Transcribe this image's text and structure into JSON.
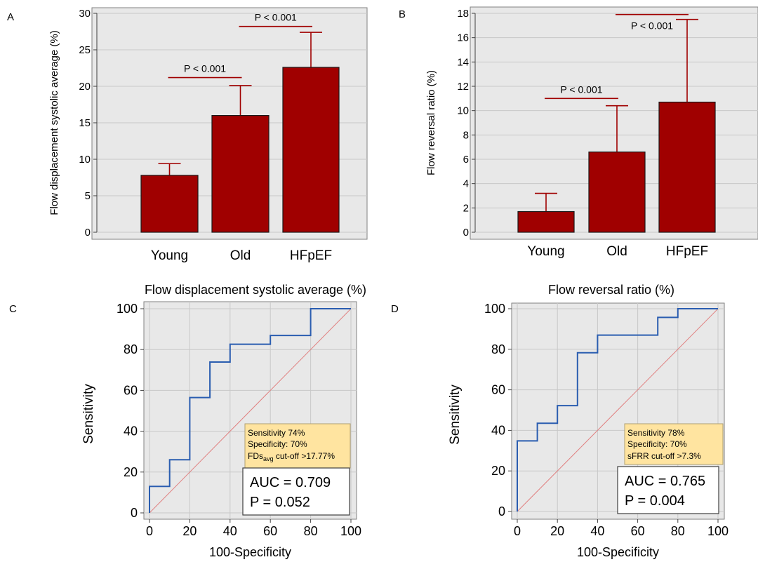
{
  "chart_data": [
    {
      "panel": "A",
      "type": "bar",
      "title": "",
      "xlabel": "",
      "ylabel": "Flow displacement systolic average (%)",
      "categories": [
        "Young",
        "Old",
        "HFpEF"
      ],
      "values": [
        7.8,
        16.0,
        22.6
      ],
      "error_upper": [
        9.4,
        20.1,
        27.4
      ],
      "ylim": [
        0,
        30
      ],
      "yticks": [
        0,
        5,
        10,
        15,
        20,
        25,
        30
      ],
      "grid": true,
      "significance": [
        {
          "from": "Young",
          "to": "Old",
          "label": "P < 0.001",
          "y": 21.2
        },
        {
          "from": "Old",
          "to": "HFpEF",
          "label": "P < 0.001",
          "y": 28.2
        }
      ],
      "colors": {
        "bar": "#a00000",
        "error": "#a00000"
      }
    },
    {
      "panel": "B",
      "type": "bar",
      "title": "",
      "xlabel": "",
      "ylabel": "Flow reversal ratio (%)",
      "categories": [
        "Young",
        "Old",
        "HFpEF"
      ],
      "values": [
        1.7,
        6.6,
        10.7
      ],
      "error_upper": [
        3.2,
        10.4,
        17.5
      ],
      "ylim": [
        0,
        18
      ],
      "yticks": [
        0,
        2,
        4,
        6,
        8,
        10,
        12,
        14,
        16,
        18
      ],
      "grid": true,
      "significance": [
        {
          "from": "Young",
          "to": "Old",
          "label": "P < 0.001",
          "y": 11.0
        },
        {
          "from": "Old",
          "to": "HFpEF",
          "label": "P < 0.001",
          "y": 17.9
        }
      ],
      "colors": {
        "bar": "#a00000",
        "error": "#a00000"
      }
    },
    {
      "panel": "C",
      "type": "line",
      "title": "Flow displacement systolic average (%)",
      "xlabel": "100-Specificity",
      "ylabel": "Sensitivity",
      "xlim": [
        0,
        100
      ],
      "ylim": [
        0,
        100
      ],
      "xticks": [
        0,
        20,
        40,
        60,
        80,
        100
      ],
      "yticks": [
        0,
        20,
        40,
        60,
        80,
        100
      ],
      "grid": true,
      "roc_x": [
        0,
        0,
        10,
        10,
        20,
        20,
        30,
        30,
        40,
        40,
        60,
        60,
        80,
        80,
        100
      ],
      "roc_y": [
        0,
        13,
        13,
        26,
        26,
        56.5,
        56.5,
        73.9,
        73.9,
        82.6,
        82.6,
        86.9,
        86.9,
        100,
        100
      ],
      "reference_line": [
        [
          0,
          0
        ],
        [
          100,
          100
        ]
      ],
      "annotation": {
        "sensitivity": "Sensitivity 74%",
        "specificity": "Specificity: 70%",
        "cutoff_main": "FDs",
        "cutoff_sub": "avg",
        "cutoff_rest": " cut-off >17.77%"
      },
      "auc": "AUC = 0.709",
      "p": "P = 0.052",
      "colors": {
        "roc": "#2a5db0",
        "diagonal": "#e08080",
        "annotation_bg": "#ffe4a0"
      }
    },
    {
      "panel": "D",
      "type": "line",
      "title": "Flow reversal ratio (%)",
      "xlabel": "100-Specificity",
      "ylabel": "Sensitivity",
      "xlim": [
        0,
        100
      ],
      "ylim": [
        0,
        100
      ],
      "xticks": [
        0,
        20,
        40,
        60,
        80,
        100
      ],
      "yticks": [
        0,
        20,
        40,
        60,
        80,
        100
      ],
      "grid": true,
      "roc_x": [
        0,
        0,
        10,
        10,
        20,
        20,
        30,
        30,
        40,
        40,
        70,
        70,
        80,
        80,
        100
      ],
      "roc_y": [
        0,
        34.8,
        34.8,
        43.5,
        43.5,
        52.2,
        52.2,
        78.3,
        78.3,
        87,
        87,
        95.7,
        95.7,
        100,
        100
      ],
      "reference_line": [
        [
          0,
          0
        ],
        [
          100,
          100
        ]
      ],
      "annotation": {
        "sensitivity": "Sensitivity 78%",
        "specificity": "Specificity: 70%",
        "cutoff_main": "sFRR cut-off >7.3%",
        "cutoff_sub": "",
        "cutoff_rest": ""
      },
      "auc": "AUC = 0.765",
      "p": "P = 0.004",
      "colors": {
        "roc": "#2a5db0",
        "diagonal": "#e08080",
        "annotation_bg": "#ffe4a0"
      }
    }
  ]
}
